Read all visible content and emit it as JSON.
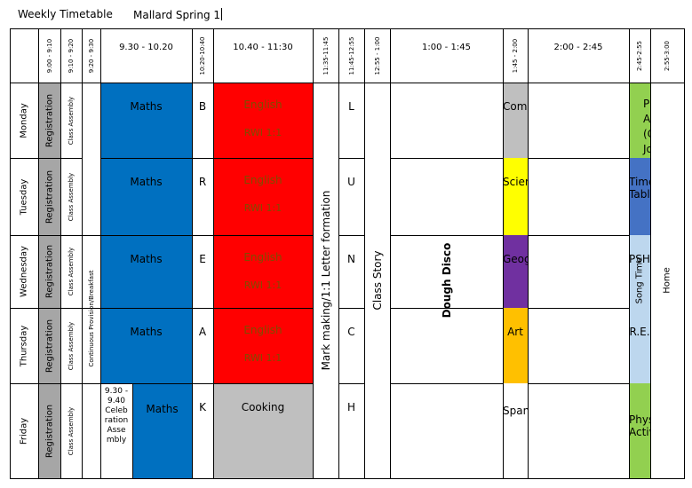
{
  "title": {
    "left": "Weekly Timetable",
    "right": "Mallard  Spring 1"
  },
  "headers": {
    "t1": "9:00 - 9:10",
    "t2": "9:10 - 9:20",
    "t3": "9:20 - 9:30",
    "t4": "9.30 - 10.20",
    "t5": "10:20-10:40",
    "t6": "10.40 - 11:30",
    "t7": "11:35-11:45",
    "t8": "11:45-12:55",
    "t9": "12:55 - 1:00",
    "t10": "1:00 - 1:45",
    "t11": "1:45 - 2:00",
    "t12": "2:00 - 2:45",
    "t13": "2:45-2:55",
    "t14": "2:55-3:00"
  },
  "days": [
    "Monday",
    "Tuesday",
    "Wednesday",
    "Thursday",
    "Friday"
  ],
  "registration": "Registration",
  "assembly": "Class Assembly",
  "continuous": "Continuous Provision/Breakfast",
  "maths": "Maths",
  "friday_assembly": "9.30 - 9.40 Celeb ration Asse mbly",
  "break_letters": [
    "B",
    "R",
    "E",
    "A",
    "K"
  ],
  "lunch_letters": [
    "L",
    "U",
    "N",
    "C",
    "H"
  ],
  "english": "English",
  "rwi": "RWI 1:1",
  "cooking": "Cooking",
  "mark_making": "Mark making/1:1 Letter formation",
  "class_story": "Class Story",
  "afternoon1": [
    "Computing",
    "Science",
    "Geography",
    "Art",
    "Spanish"
  ],
  "dough_disco": "Dough Disco",
  "afternoon2": [
    "Physical Activity (Commando Joe)",
    "Times Tables",
    "PSHE",
    "R.E.",
    "Physical Activity"
  ],
  "song_time": "Song Time",
  "home": "Home",
  "colors": {
    "maths": "#0070c0",
    "english": "#ff0000",
    "grey": "#bfbfbf",
    "computing": "#bfbfbf",
    "science": "#ffff00",
    "geography": "#7030a0",
    "art": "#ffc000",
    "pe": "#92d050",
    "times_tables": "#4472c4",
    "pshe": "#bdd7ee",
    "re": "#bdd7ee",
    "registration": "#a6a6a6",
    "cooking": "#bfbfbf"
  }
}
